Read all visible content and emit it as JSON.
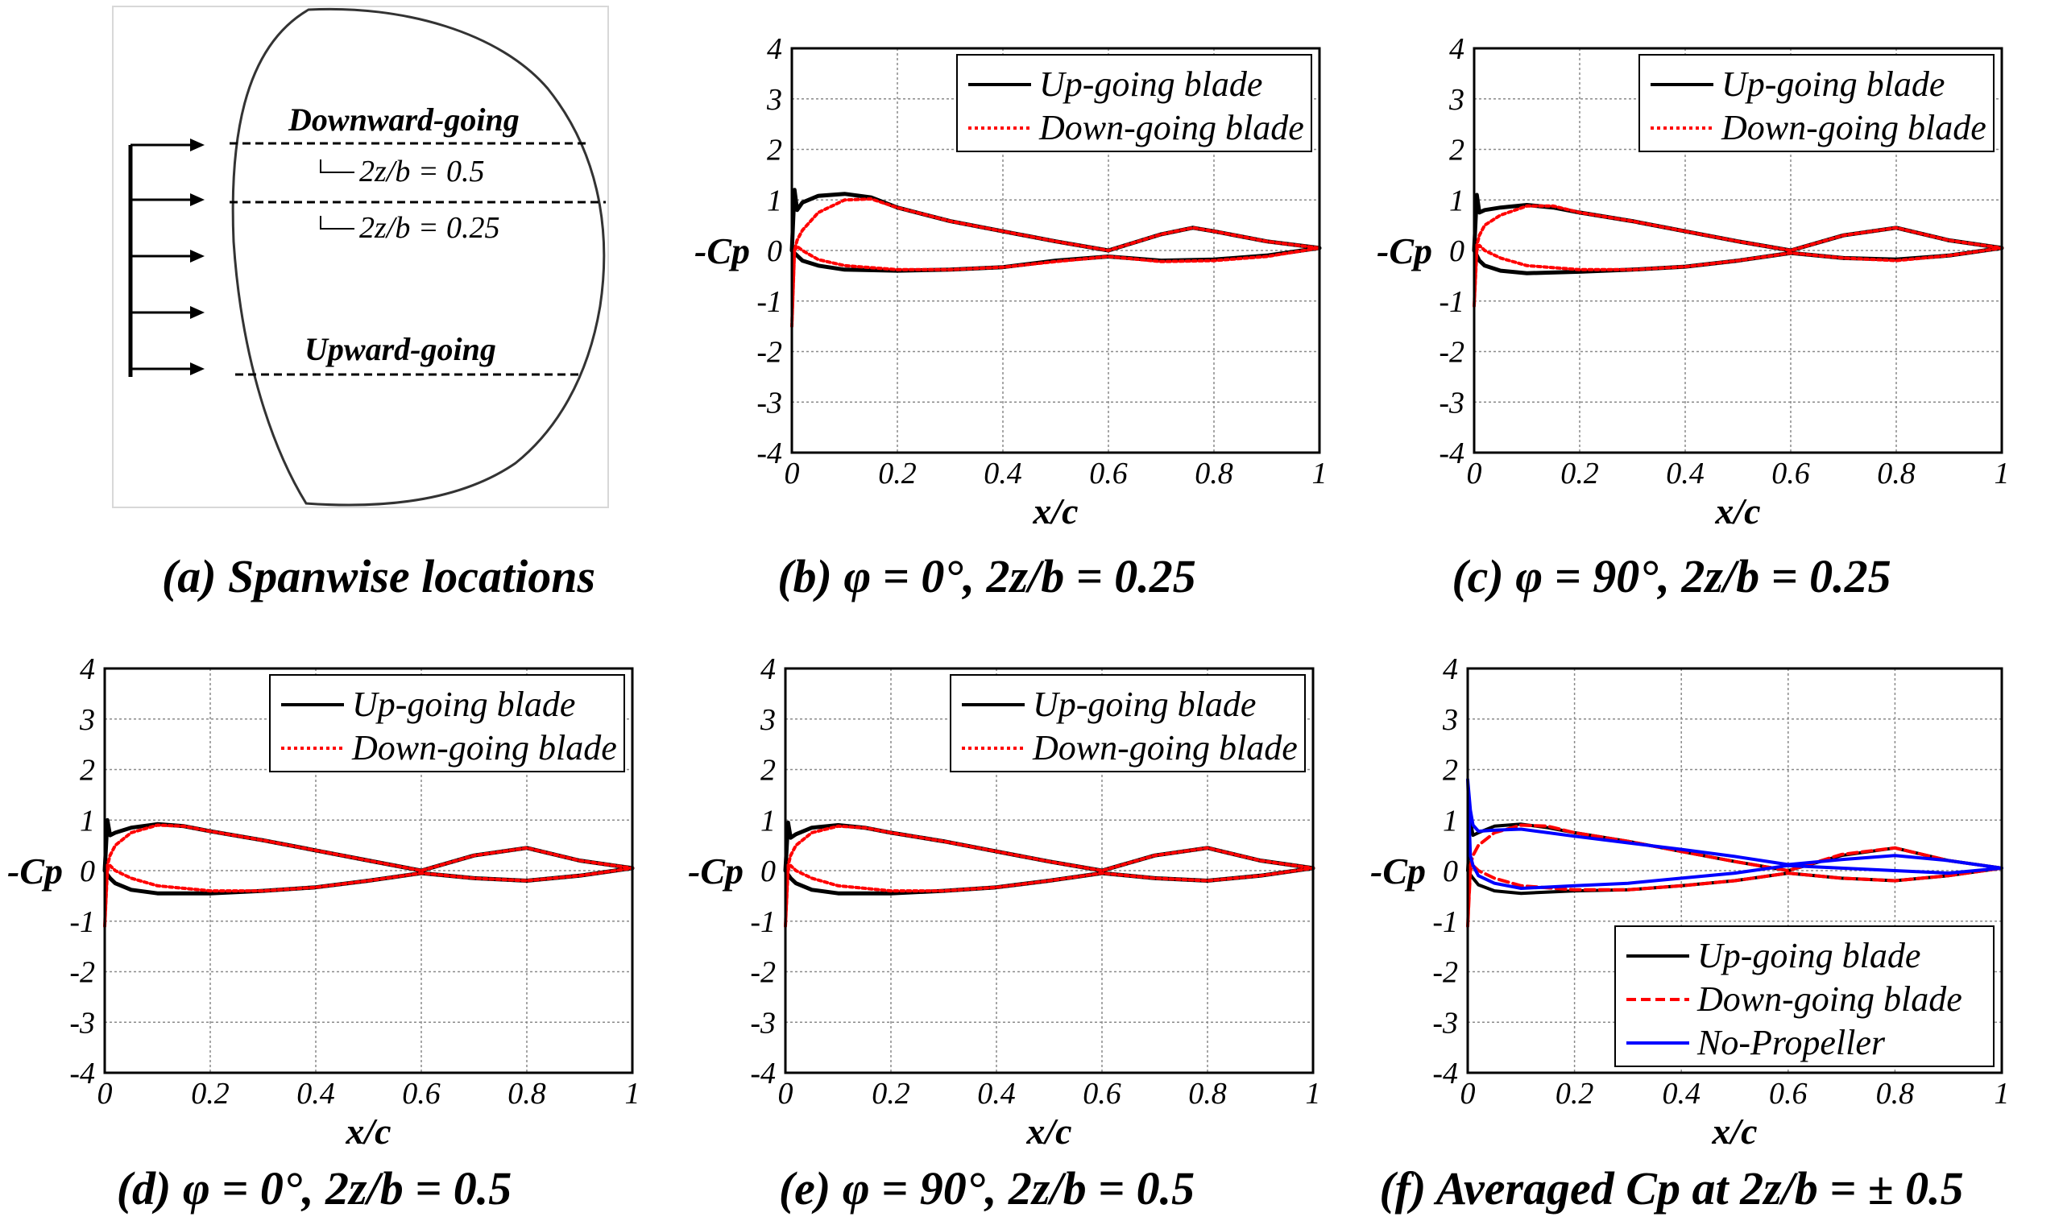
{
  "figure": {
    "panel_a": {
      "caption": "(a) Spanwise locations",
      "labels": {
        "downward": "Downward-going",
        "upward": "Upward-going",
        "loc1": "2z/b = 0.5",
        "loc2": "2z/b = 0.25"
      }
    }
  },
  "chart_data": [
    {
      "id": "b",
      "type": "line",
      "caption": "(b) φ = 0°, 2z/b = 0.25",
      "xlabel": "x/c",
      "ylabel": "-Cp",
      "xlim": [
        0,
        1
      ],
      "ylim": [
        -4,
        4
      ],
      "xticks": [
        "0",
        "0.2",
        "0.4",
        "0.6",
        "0.8",
        "1"
      ],
      "yticks": [
        "4",
        "3",
        "2",
        "1",
        "0",
        "-1",
        "-2",
        "-3",
        "-4"
      ],
      "grid": true,
      "legend_position": "top-right",
      "series": [
        {
          "name": "Up-going blade",
          "color": "#000000",
          "style": "solid",
          "x": [
            0,
            0.005,
            0.01,
            0.02,
            0.05,
            0.1,
            0.15,
            0.2,
            0.3,
            0.4,
            0.5,
            0.6,
            0.7,
            0.76,
            0.8,
            0.9,
            1.0,
            0.9,
            0.8,
            0.7,
            0.6,
            0.5,
            0.4,
            0.3,
            0.2,
            0.1,
            0.05,
            0.02,
            0.01,
            0.005,
            0
          ],
          "y": [
            0,
            1.2,
            0.8,
            0.95,
            1.08,
            1.12,
            1.05,
            0.85,
            0.58,
            0.38,
            0.18,
            0.0,
            0.32,
            0.45,
            0.38,
            0.18,
            0.05,
            -0.1,
            -0.18,
            -0.2,
            -0.12,
            -0.2,
            -0.33,
            -0.38,
            -0.4,
            -0.38,
            -0.3,
            -0.2,
            -0.1,
            -0.05,
            0
          ]
        },
        {
          "name": "Down-going blade",
          "color": "#ff0000",
          "style": "dotted",
          "x": [
            0,
            0.005,
            0.01,
            0.02,
            0.05,
            0.1,
            0.15,
            0.2,
            0.3,
            0.4,
            0.5,
            0.6,
            0.7,
            0.76,
            0.8,
            0.9,
            1.0,
            0.9,
            0.8,
            0.7,
            0.6,
            0.5,
            0.4,
            0.3,
            0.2,
            0.1,
            0.05,
            0.02,
            0.01,
            0.005,
            0
          ],
          "y": [
            -1.5,
            0.0,
            0.2,
            0.4,
            0.75,
            1.0,
            1.02,
            0.85,
            0.58,
            0.38,
            0.18,
            0.0,
            0.32,
            0.45,
            0.38,
            0.18,
            0.05,
            -0.12,
            -0.2,
            -0.22,
            -0.12,
            -0.22,
            -0.33,
            -0.38,
            -0.38,
            -0.3,
            -0.18,
            0.0,
            0.08,
            0.0,
            -1.5
          ]
        }
      ]
    },
    {
      "id": "c",
      "type": "line",
      "caption": "(c) φ = 90°, 2z/b = 0.25",
      "xlabel": "x/c",
      "ylabel": "-Cp",
      "xlim": [
        0,
        1
      ],
      "ylim": [
        -4,
        4
      ],
      "xticks": [
        "0",
        "0.2",
        "0.4",
        "0.6",
        "0.8",
        "1"
      ],
      "yticks": [
        "4",
        "3",
        "2",
        "1",
        "0",
        "-1",
        "-2",
        "-3",
        "-4"
      ],
      "grid": true,
      "legend_position": "top-right",
      "series": [
        {
          "name": "Up-going blade",
          "color": "#000000",
          "style": "solid",
          "x": [
            0,
            0.005,
            0.01,
            0.02,
            0.05,
            0.1,
            0.15,
            0.2,
            0.3,
            0.4,
            0.5,
            0.6,
            0.7,
            0.8,
            0.9,
            1.0,
            0.9,
            0.8,
            0.7,
            0.6,
            0.5,
            0.4,
            0.3,
            0.2,
            0.1,
            0.05,
            0.02,
            0.01,
            0.005,
            0
          ],
          "y": [
            0,
            1.1,
            0.75,
            0.8,
            0.85,
            0.9,
            0.85,
            0.75,
            0.58,
            0.38,
            0.18,
            0.0,
            0.3,
            0.45,
            0.2,
            0.05,
            -0.1,
            -0.18,
            -0.15,
            -0.05,
            -0.2,
            -0.32,
            -0.38,
            -0.42,
            -0.45,
            -0.4,
            -0.3,
            -0.2,
            -0.1,
            0
          ]
        },
        {
          "name": "Down-going blade",
          "color": "#ff0000",
          "style": "dotted",
          "x": [
            0,
            0.005,
            0.01,
            0.02,
            0.05,
            0.1,
            0.15,
            0.2,
            0.3,
            0.4,
            0.5,
            0.6,
            0.7,
            0.8,
            0.9,
            1.0,
            0.9,
            0.8,
            0.7,
            0.6,
            0.5,
            0.4,
            0.3,
            0.2,
            0.1,
            0.05,
            0.02,
            0.01,
            0.005,
            0
          ],
          "y": [
            -1.1,
            0.1,
            0.3,
            0.5,
            0.7,
            0.88,
            0.88,
            0.75,
            0.58,
            0.38,
            0.18,
            0.0,
            0.3,
            0.45,
            0.2,
            0.05,
            -0.1,
            -0.2,
            -0.15,
            -0.05,
            -0.2,
            -0.32,
            -0.38,
            -0.38,
            -0.3,
            -0.15,
            0.0,
            0.1,
            0.0,
            -1.1
          ]
        }
      ]
    },
    {
      "id": "d",
      "type": "line",
      "caption": "(d) φ = 0°, 2z/b = 0.5",
      "xlabel": "x/c",
      "ylabel": "-Cp",
      "xlim": [
        0,
        1
      ],
      "ylim": [
        -4,
        4
      ],
      "xticks": [
        "0",
        "0.2",
        "0.4",
        "0.6",
        "0.8",
        "1"
      ],
      "yticks": [
        "4",
        "3",
        "2",
        "1",
        "0",
        "-1",
        "-2",
        "-3",
        "-4"
      ],
      "grid": true,
      "legend_position": "top-right",
      "series": [
        {
          "name": "Up-going blade",
          "color": "#000000",
          "style": "solid",
          "x": [
            0,
            0.005,
            0.01,
            0.02,
            0.05,
            0.1,
            0.15,
            0.2,
            0.3,
            0.4,
            0.5,
            0.6,
            0.7,
            0.8,
            0.9,
            1.0,
            0.9,
            0.8,
            0.7,
            0.6,
            0.5,
            0.4,
            0.3,
            0.2,
            0.1,
            0.05,
            0.02,
            0.01,
            0.005,
            0
          ],
          "y": [
            0,
            1.0,
            0.7,
            0.75,
            0.85,
            0.92,
            0.88,
            0.78,
            0.6,
            0.4,
            0.2,
            0.0,
            0.3,
            0.45,
            0.2,
            0.05,
            -0.1,
            -0.2,
            -0.15,
            -0.05,
            -0.2,
            -0.33,
            -0.4,
            -0.45,
            -0.45,
            -0.38,
            -0.25,
            -0.15,
            -0.08,
            0
          ]
        },
        {
          "name": "Down-going blade",
          "color": "#ff0000",
          "style": "dotted",
          "x": [
            0,
            0.005,
            0.01,
            0.02,
            0.05,
            0.1,
            0.15,
            0.2,
            0.3,
            0.4,
            0.5,
            0.6,
            0.7,
            0.8,
            0.9,
            1.0,
            0.9,
            0.8,
            0.7,
            0.6,
            0.5,
            0.4,
            0.3,
            0.2,
            0.1,
            0.05,
            0.02,
            0.01,
            0.005,
            0
          ],
          "y": [
            -1.1,
            0.1,
            0.3,
            0.5,
            0.75,
            0.9,
            0.88,
            0.78,
            0.6,
            0.4,
            0.2,
            0.0,
            0.3,
            0.45,
            0.2,
            0.05,
            -0.1,
            -0.2,
            -0.15,
            -0.05,
            -0.2,
            -0.33,
            -0.4,
            -0.4,
            -0.3,
            -0.15,
            0.0,
            0.1,
            0.0,
            -1.1
          ]
        }
      ]
    },
    {
      "id": "e",
      "type": "line",
      "caption": "(e) φ = 90°, 2z/b = 0.5",
      "xlabel": "x/c",
      "ylabel": "-Cp",
      "xlim": [
        0,
        1
      ],
      "ylim": [
        -4,
        4
      ],
      "xticks": [
        "0",
        "0.2",
        "0.4",
        "0.6",
        "0.8",
        "1"
      ],
      "yticks": [
        "4",
        "3",
        "2",
        "1",
        "0",
        "-1",
        "-2",
        "-3",
        "-4"
      ],
      "grid": true,
      "legend_position": "top-right",
      "series": [
        {
          "name": "Up-going blade",
          "color": "#000000",
          "style": "solid",
          "x": [
            0,
            0.005,
            0.01,
            0.02,
            0.05,
            0.1,
            0.15,
            0.2,
            0.3,
            0.4,
            0.5,
            0.6,
            0.7,
            0.8,
            0.9,
            1.0,
            0.9,
            0.8,
            0.7,
            0.6,
            0.5,
            0.4,
            0.3,
            0.2,
            0.1,
            0.05,
            0.02,
            0.01,
            0.005,
            0
          ],
          "y": [
            0,
            0.95,
            0.65,
            0.72,
            0.85,
            0.9,
            0.85,
            0.75,
            0.58,
            0.38,
            0.18,
            0.0,
            0.3,
            0.45,
            0.2,
            0.05,
            -0.1,
            -0.2,
            -0.15,
            -0.05,
            -0.2,
            -0.33,
            -0.4,
            -0.45,
            -0.45,
            -0.38,
            -0.25,
            -0.15,
            -0.08,
            0
          ]
        },
        {
          "name": "Down-going blade",
          "color": "#ff0000",
          "style": "dotted",
          "x": [
            0,
            0.005,
            0.01,
            0.02,
            0.05,
            0.1,
            0.15,
            0.2,
            0.3,
            0.4,
            0.5,
            0.6,
            0.7,
            0.8,
            0.9,
            1.0,
            0.9,
            0.8,
            0.7,
            0.6,
            0.5,
            0.4,
            0.3,
            0.2,
            0.1,
            0.05,
            0.02,
            0.01,
            0.005,
            0
          ],
          "y": [
            -1.1,
            0.1,
            0.3,
            0.5,
            0.75,
            0.88,
            0.85,
            0.75,
            0.58,
            0.38,
            0.18,
            0.0,
            0.3,
            0.45,
            0.2,
            0.05,
            -0.1,
            -0.2,
            -0.15,
            -0.05,
            -0.2,
            -0.33,
            -0.4,
            -0.4,
            -0.3,
            -0.15,
            0.0,
            0.1,
            0.0,
            -1.1
          ]
        }
      ]
    },
    {
      "id": "f",
      "type": "line",
      "caption": "(f) Averaged Cp at 2z/b = ± 0.5",
      "xlabel": "x/c",
      "ylabel": "-Cp",
      "xlim": [
        0,
        1
      ],
      "ylim": [
        -4,
        4
      ],
      "xticks": [
        "0",
        "0.2",
        "0.4",
        "0.6",
        "0.8",
        "1"
      ],
      "yticks": [
        "4",
        "3",
        "2",
        "1",
        "0",
        "-1",
        "-2",
        "-3",
        "-4"
      ],
      "grid": true,
      "legend_position": "bottom-right",
      "series": [
        {
          "name": "Up-going blade",
          "color": "#000000",
          "style": "solid",
          "x": [
            0,
            0.005,
            0.01,
            0.02,
            0.05,
            0.1,
            0.15,
            0.2,
            0.3,
            0.4,
            0.5,
            0.6,
            0.7,
            0.8,
            0.9,
            1.0,
            0.9,
            0.8,
            0.7,
            0.6,
            0.5,
            0.4,
            0.3,
            0.2,
            0.1,
            0.05,
            0.02,
            0.01,
            0.005,
            0
          ],
          "y": [
            0,
            1.0,
            0.7,
            0.75,
            0.88,
            0.92,
            0.85,
            0.75,
            0.58,
            0.38,
            0.18,
            0.0,
            0.3,
            0.45,
            0.2,
            0.05,
            -0.1,
            -0.2,
            -0.15,
            -0.05,
            -0.2,
            -0.3,
            -0.38,
            -0.4,
            -0.45,
            -0.4,
            -0.28,
            -0.15,
            -0.08,
            0
          ]
        },
        {
          "name": "Down-going blade",
          "color": "#ff0000",
          "style": "dashed",
          "x": [
            0,
            0.005,
            0.01,
            0.02,
            0.05,
            0.1,
            0.15,
            0.2,
            0.3,
            0.4,
            0.5,
            0.6,
            0.7,
            0.8,
            0.9,
            1.0,
            0.9,
            0.8,
            0.7,
            0.6,
            0.5,
            0.4,
            0.3,
            0.2,
            0.1,
            0.05,
            0.02,
            0.01,
            0.005,
            0
          ],
          "y": [
            -1.1,
            0.1,
            0.3,
            0.5,
            0.75,
            0.9,
            0.88,
            0.75,
            0.58,
            0.38,
            0.18,
            0.0,
            0.32,
            0.45,
            0.2,
            0.05,
            -0.1,
            -0.2,
            -0.15,
            -0.05,
            -0.2,
            -0.3,
            -0.38,
            -0.38,
            -0.3,
            -0.15,
            0.0,
            0.1,
            0.0,
            -1.1
          ]
        },
        {
          "name": "No-Propeller",
          "color": "#0000ff",
          "style": "solid",
          "x": [
            0,
            0.005,
            0.01,
            0.02,
            0.05,
            0.1,
            0.15,
            0.2,
            0.3,
            0.4,
            0.5,
            0.6,
            0.7,
            0.8,
            0.9,
            1.0,
            0.9,
            0.8,
            0.7,
            0.6,
            0.5,
            0.4,
            0.3,
            0.2,
            0.1,
            0.05,
            0.02,
            0.01,
            0.005,
            0
          ],
          "y": [
            1.8,
            1.2,
            0.9,
            0.78,
            0.8,
            0.82,
            0.75,
            0.68,
            0.55,
            0.42,
            0.28,
            0.12,
            0.22,
            0.3,
            0.2,
            0.05,
            -0.05,
            0.0,
            0.05,
            0.1,
            -0.05,
            -0.15,
            -0.25,
            -0.3,
            -0.35,
            -0.25,
            -0.1,
            0.1,
            0.3,
            1.8
          ]
        }
      ]
    }
  ]
}
